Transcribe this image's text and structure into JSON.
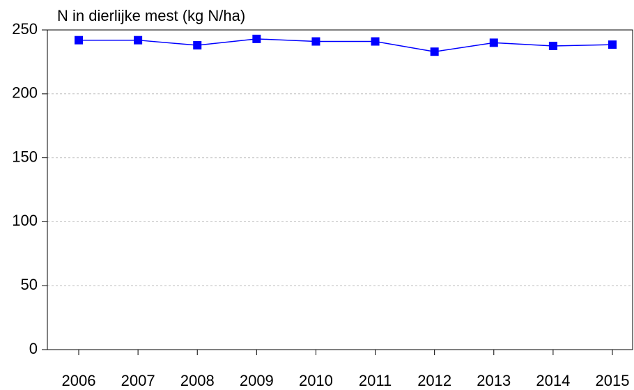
{
  "chart_data": {
    "type": "line",
    "title": "N in dierlijke mest (kg N/ha)",
    "categories": [
      "2006",
      "2007",
      "2008",
      "2009",
      "2010",
      "2011",
      "2012",
      "2013",
      "2014",
      "2015"
    ],
    "series": [
      {
        "name": "N in dierlijke mest",
        "color": "#0000ff",
        "values": [
          242,
          242,
          238,
          243,
          241,
          241,
          233,
          240,
          237.5,
          238.5
        ]
      }
    ],
    "ylim": [
      0,
      250
    ],
    "yticks": [
      0,
      50,
      100,
      150,
      200,
      250
    ],
    "grid": true
  }
}
